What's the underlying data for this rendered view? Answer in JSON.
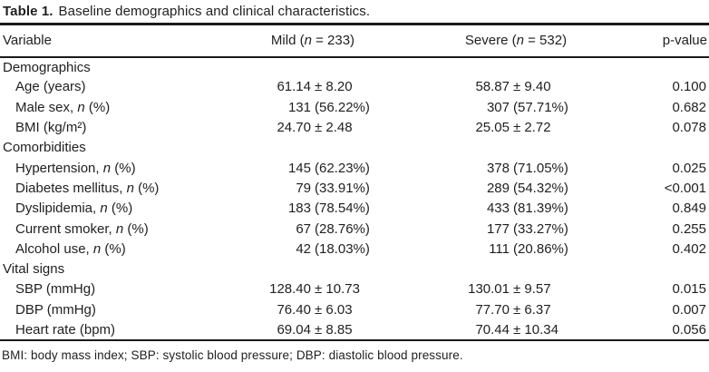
{
  "page": {
    "background_color": "#ffffff",
    "text_color": "#1f1f1f",
    "rule_color": "#1a1a1a"
  },
  "title": {
    "label": "Table 1.",
    "caption": "Baseline demographics and clinical characteristics."
  },
  "table": {
    "header": {
      "variable": "Variable",
      "mild": {
        "pre": "Mild (",
        "n": "n",
        "post": " = 233)"
      },
      "severe": {
        "pre": "Severe (",
        "n": "n",
        "post": " = 532)"
      },
      "pvalue": "p-value"
    },
    "rows": [
      {
        "type": "section",
        "label": "Demographics"
      },
      {
        "type": "data",
        "label": {
          "pre": "Age (years)",
          "n": "",
          "post": ""
        },
        "mild": {
          "num": "61.14",
          "rest": "± 8.20"
        },
        "severe": {
          "num": "58.87",
          "rest": "± 9.40"
        },
        "p": "0.100"
      },
      {
        "type": "data",
        "label": {
          "pre": "Male sex, ",
          "n": "n",
          "post": " (%)"
        },
        "mild": {
          "num": "131",
          "rest": "(56.22%)"
        },
        "severe": {
          "num": "307",
          "rest": "(57.71%)"
        },
        "p": "0.682"
      },
      {
        "type": "data",
        "label": {
          "pre": "BMI (kg/m²)",
          "n": "",
          "post": ""
        },
        "mild": {
          "num": "24.70",
          "rest": "± 2.48"
        },
        "severe": {
          "num": "25.05",
          "rest": "± 2.72"
        },
        "p": "0.078"
      },
      {
        "type": "section",
        "label": "Comorbidities"
      },
      {
        "type": "data",
        "label": {
          "pre": "Hypertension, ",
          "n": "n",
          "post": " (%)"
        },
        "mild": {
          "num": "145",
          "rest": "(62.23%)"
        },
        "severe": {
          "num": "378",
          "rest": "(71.05%)"
        },
        "p": "0.025"
      },
      {
        "type": "data",
        "label": {
          "pre": "Diabetes mellitus, ",
          "n": "n",
          "post": " (%)"
        },
        "mild": {
          "num": "79",
          "rest": "(33.91%)"
        },
        "severe": {
          "num": "289",
          "rest": "(54.32%)"
        },
        "p": "<0.001"
      },
      {
        "type": "data",
        "label": {
          "pre": "Dyslipidemia, ",
          "n": "n",
          "post": " (%)"
        },
        "mild": {
          "num": "183",
          "rest": "(78.54%)"
        },
        "severe": {
          "num": "433",
          "rest": "(81.39%)"
        },
        "p": "0.849"
      },
      {
        "type": "data",
        "label": {
          "pre": "Current smoker, ",
          "n": "n",
          "post": " (%)"
        },
        "mild": {
          "num": "67",
          "rest": "(28.76%)"
        },
        "severe": {
          "num": "177",
          "rest": "(33.27%)"
        },
        "p": "0.255"
      },
      {
        "type": "data",
        "label": {
          "pre": "Alcohol use, ",
          "n": "n",
          "post": " (%)"
        },
        "mild": {
          "num": "42",
          "rest": "(18.03%)"
        },
        "severe": {
          "num": "111",
          "rest": "(20.86%)"
        },
        "p": "0.402"
      },
      {
        "type": "section",
        "label": "Vital signs"
      },
      {
        "type": "data",
        "label": {
          "pre": "SBP (mmHg)",
          "n": "",
          "post": ""
        },
        "mild": {
          "num": "128.40",
          "rest": "± 10.73"
        },
        "severe": {
          "num": "130.01",
          "rest": "± 9.57"
        },
        "p": "0.015"
      },
      {
        "type": "data",
        "label": {
          "pre": "DBP (mmHg)",
          "n": "",
          "post": ""
        },
        "mild": {
          "num": "76.40",
          "rest": "± 6.03"
        },
        "severe": {
          "num": "77.70",
          "rest": "± 6.37"
        },
        "p": "0.007"
      },
      {
        "type": "data",
        "label": {
          "pre": "Heart rate (bpm)",
          "n": "",
          "post": ""
        },
        "mild": {
          "num": "69.04",
          "rest": "± 8.85"
        },
        "severe": {
          "num": "70.44",
          "rest": "± 10.34"
        },
        "p": "0.056"
      }
    ]
  },
  "footnote": "BMI: body mass index; SBP: systolic blood pressure; DBP: diastolic blood pressure."
}
